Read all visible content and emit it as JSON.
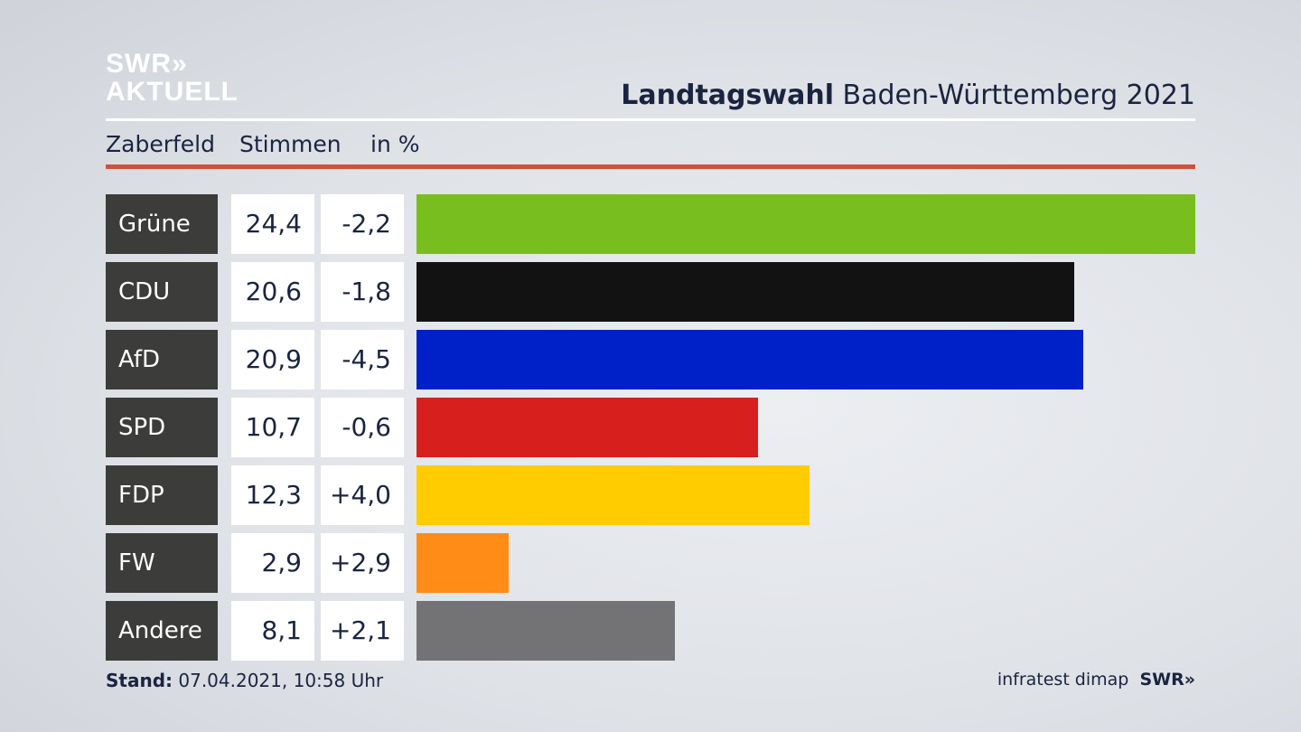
{
  "logo": {
    "line1": "SWR»",
    "line2": "AKTUELL"
  },
  "header": {
    "title_bold": "Landtagswahl",
    "title_rest": " Baden-Württemberg 2021"
  },
  "subheader": {
    "district": "Zaberfeld",
    "stimmen": "Stimmen",
    "unit": "in %"
  },
  "chart_data": {
    "type": "bar",
    "orientation": "horizontal",
    "title": "Landtagswahl Baden-Württemberg 2021",
    "subtitle": "Zaberfeld Stimmen in %",
    "categories": [
      "Grüne",
      "CDU",
      "AfD",
      "SPD",
      "FDP",
      "FW",
      "Andere"
    ],
    "values": [
      24.4,
      20.6,
      20.9,
      10.7,
      12.3,
      2.9,
      8.1
    ],
    "value_labels": [
      "24,4",
      "20,6",
      "20,9",
      "10,7",
      "12,3",
      "2,9",
      "8,1"
    ],
    "diffs": [
      "-2,2",
      "-1,8",
      "-4,5",
      "-0,6",
      "+4,0",
      "+2,9",
      "+2,1"
    ],
    "colors": [
      "#78be1e",
      "#121212",
      "#0021c8",
      "#d71f1d",
      "#ffcc00",
      "#ff8c16",
      "#737375"
    ],
    "xlim": [
      0,
      24.4
    ]
  },
  "footer": {
    "stand_label": "Stand:",
    "stand_value": " 07.04.2021, 10:58 Uhr",
    "source": "infratest dimap",
    "brand": "SWR»"
  }
}
